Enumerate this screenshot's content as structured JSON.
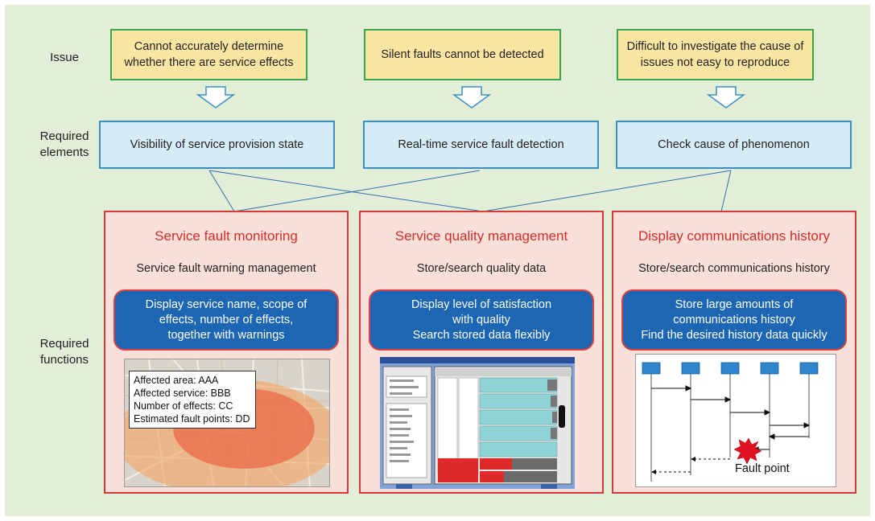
{
  "row_labels": {
    "issue": "Issue",
    "required_elements": [
      "Required",
      "elements"
    ],
    "required_functions": [
      "Required",
      "functions"
    ]
  },
  "issues": [
    [
      "Cannot accurately determine",
      "whether there are service effects"
    ],
    [
      "Silent faults cannot be detected"
    ],
    [
      "Difficult to investigate the cause of",
      "issues not easy to reproduce"
    ]
  ],
  "required_elements": [
    "Visibility of service provision state",
    "Real-time service fault detection",
    "Check cause of phenomenon"
  ],
  "functions": [
    {
      "title": "Service fault monitoring",
      "subtitle": "Service fault warning management",
      "details": [
        "Display service name, scope of",
        "effects, number of effects,",
        "together with warnings"
      ],
      "map_info": [
        "Affected area: AAA",
        "Affected service: BBB",
        "Number of effects: CC",
        "Estimated fault points: DD"
      ]
    },
    {
      "title": "Service quality management",
      "subtitle": "Store/search quality data",
      "details": [
        "Display level of satisfaction",
        "with quality",
        "Search stored data flexibly"
      ]
    },
    {
      "title": "Display communications history",
      "subtitle": "Store/search communications history",
      "details": [
        "Store large amounts of",
        "communications history",
        "Find the desired history data quickly"
      ],
      "fault_label": "Fault point"
    }
  ],
  "colors": {
    "background": "#e3eed9",
    "issue_fill": "#fbe5a2",
    "issue_border": "#3aa54a",
    "element_fill": "#d6ecf6",
    "element_border": "#3d8fc2",
    "function_fill": "#f9e0d8",
    "function_border": "#d83a3a",
    "title_red": "#d62b2b",
    "pill_blue": "#1c66b4"
  }
}
